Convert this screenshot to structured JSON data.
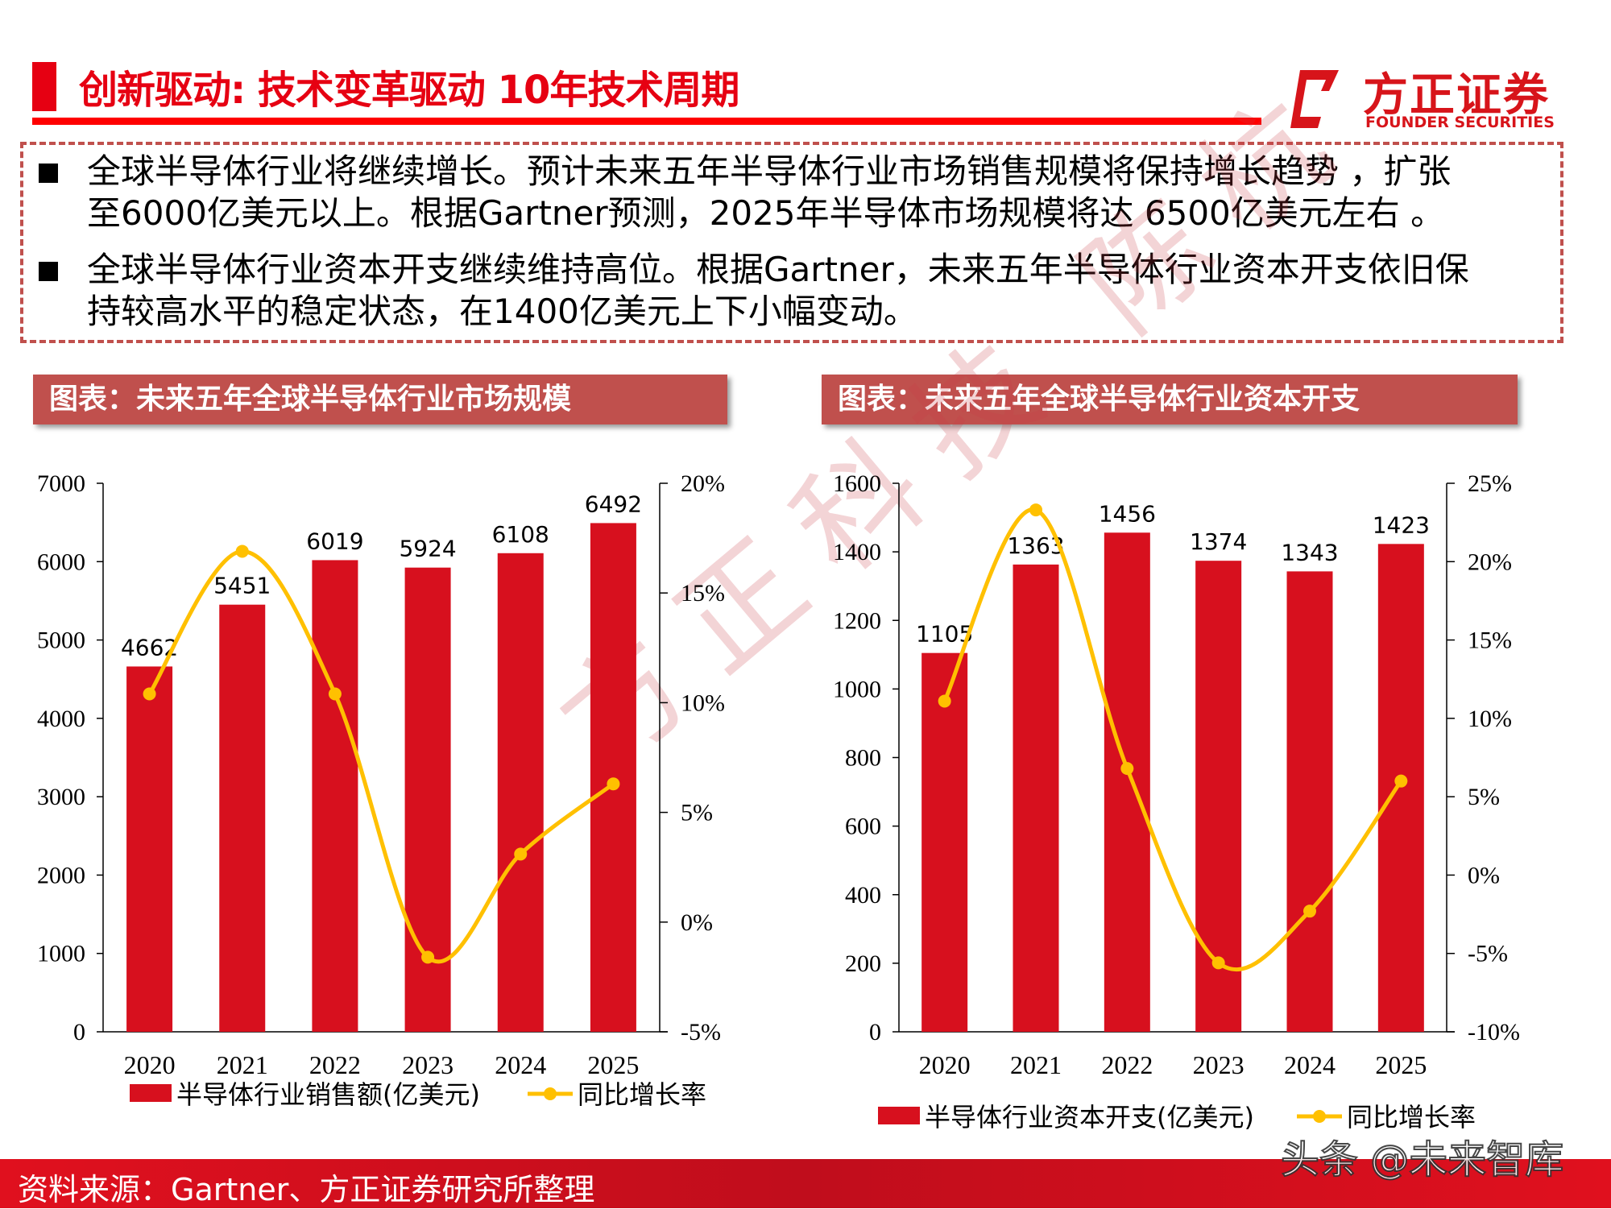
{
  "header": {
    "title": "创新驱动: 技术变革驱动 10年技术周期",
    "logo_cn": "方正证券",
    "logo_en": "FOUNDER SECURITIES"
  },
  "summary": {
    "bullets": [
      {
        "line1": "全球半导体行业将继续增长。预计未来五年半导体行业市场销售规模将保持增长趋势 ，扩张",
        "line2": "至6000亿美元以上。根据Gartner预测，2025年半导体市场规模将达 6500亿美元左右 。"
      },
      {
        "line1": "全球半导体行业资本开支继续维持高位。根据Gartner，未来五年半导体行业资本开支依旧保",
        "line2": "持较高水平的稳定状态，在1400亿美元上下小幅变动。"
      }
    ]
  },
  "colors": {
    "bar": "#d7101e",
    "line": "#ffc000",
    "accent": "#e60012",
    "header_bg": "#c0504d"
  },
  "chart_data": [
    {
      "heading": "图表：未来五年全球半导体行业市场规模",
      "type": "bar+line",
      "categories": [
        "2020",
        "2021",
        "2022",
        "2023",
        "2024",
        "2025"
      ],
      "series": [
        {
          "name": "半导体行业销售额(亿美元)",
          "type": "bar",
          "axis": "left",
          "values": [
            4662,
            5451,
            6019,
            5924,
            6108,
            6492
          ]
        },
        {
          "name": "同比增长率",
          "type": "line",
          "axis": "right",
          "values": [
            10.4,
            16.9,
            10.4,
            -1.6,
            3.1,
            6.3
          ]
        }
      ],
      "left_axis": {
        "min": 0,
        "max": 7000,
        "ticks": [
          "0",
          "1000",
          "2000",
          "3000",
          "4000",
          "5000",
          "6000",
          "7000"
        ]
      },
      "right_axis": {
        "min": -5,
        "max": 20,
        "ticks": [
          "-5%",
          "0%",
          "5%",
          "10%",
          "15%",
          "20%"
        ]
      },
      "data_labels": [
        "4662",
        "5451",
        "6019",
        "5924",
        "6108",
        "6492"
      ],
      "legend_position": "bottom"
    },
    {
      "heading": "图表：未来五年全球半导体行业资本开支",
      "type": "bar+line",
      "categories": [
        "2020",
        "2021",
        "2022",
        "2023",
        "2024",
        "2025"
      ],
      "series": [
        {
          "name": "半导体行业资本开支(亿美元)",
          "type": "bar",
          "axis": "left",
          "values": [
            1105,
            1363,
            1456,
            1374,
            1343,
            1423
          ]
        },
        {
          "name": "同比增长率",
          "type": "line",
          "axis": "right",
          "values": [
            11.1,
            23.3,
            6.8,
            -5.6,
            -2.3,
            6.0
          ]
        }
      ],
      "left_axis": {
        "min": 0,
        "max": 1600,
        "ticks": [
          "0",
          "200",
          "400",
          "600",
          "800",
          "1000",
          "1200",
          "1400",
          "1600"
        ]
      },
      "right_axis": {
        "min": -10,
        "max": 25,
        "ticks": [
          "-10%",
          "-5%",
          "0%",
          "5%",
          "10%",
          "15%",
          "20%",
          "25%"
        ]
      },
      "data_labels": [
        "1105",
        "1363",
        "1456",
        "1374",
        "1343",
        "1423"
      ],
      "legend_position": "bottom"
    }
  ],
  "footer": {
    "source": "资料来源：Gartner、方正证券研究所整理",
    "watermark_toutiao": "头条 @未来智库"
  },
  "watermark": "方正科技 陈杭"
}
